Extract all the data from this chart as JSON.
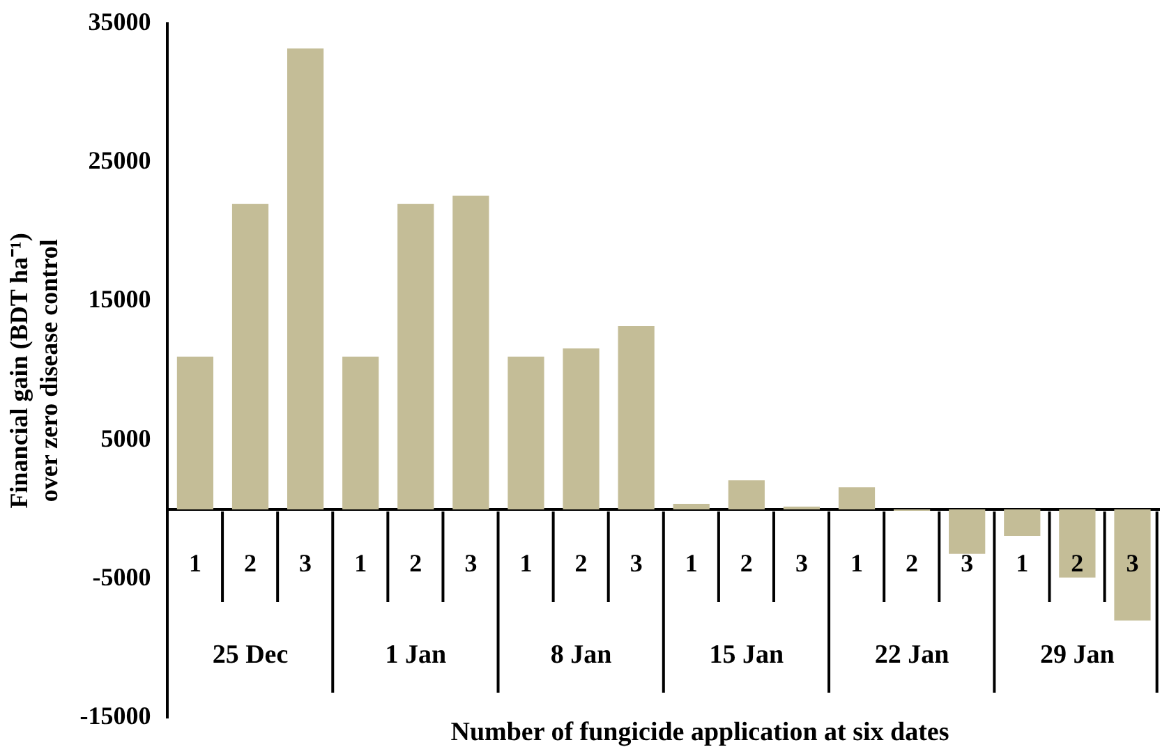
{
  "chart_data": {
    "type": "bar",
    "xlabel": "Number of fungicide application at six dates",
    "ylabel": "Financial gain (BDT ha⁻¹) over zero disease control",
    "categories": [
      "1",
      "2",
      "3",
      "1",
      "2",
      "3",
      "1",
      "2",
      "3",
      "1",
      "2",
      "3",
      "1",
      "2",
      "3",
      "1",
      "2",
      "3"
    ],
    "values": [
      11000,
      22000,
      33200,
      11000,
      22000,
      22600,
      11000,
      11600,
      13200,
      400,
      2100,
      200,
      1600,
      -100,
      -3200,
      -1900,
      -4900,
      -8000
    ],
    "color": "#c4bd97",
    "annotations": [
      "25 Dec",
      "1 Jan",
      "8 Jan",
      "15 Jan",
      "22 Jan",
      "29 Jan"
    ],
    "ylim": [
      -15000,
      35000
    ],
    "yticks": [
      -15000,
      -5000,
      5000,
      15000,
      25000,
      35000
    ],
    "grid": false,
    "legend": false
  }
}
